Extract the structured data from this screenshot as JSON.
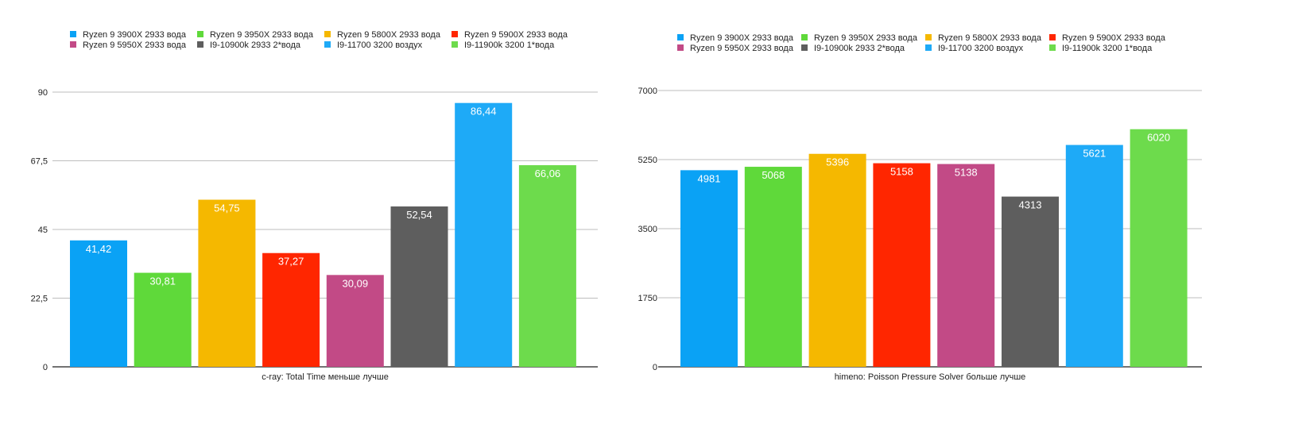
{
  "chart_data": [
    {
      "type": "bar",
      "xlabel": "c-ray: Total Time меньше лучше",
      "ylim": [
        0,
        90
      ],
      "yticks": [
        "0",
        "22,5",
        "45",
        "67,5",
        "90"
      ],
      "ytick_values": [
        0,
        22.5,
        45,
        67.5,
        90
      ],
      "grid": true,
      "legend_position": "top",
      "series": [
        {
          "name": "Ryzen 9 3900X 2933 вода",
          "value": 41.42,
          "label": "41,42",
          "color": "#0aa2f5"
        },
        {
          "name": "Ryzen 9 3950X 2933 вода",
          "value": 30.81,
          "label": "30,81",
          "color": "#5fd93a"
        },
        {
          "name": "Ryzen 9 5800X 2933 вода",
          "value": 54.75,
          "label": "54,75",
          "color": "#f5b800"
        },
        {
          "name": "Ryzen 9 5900X 2933 вода",
          "value": 37.27,
          "label": "37,27",
          "color": "#ff2600"
        },
        {
          "name": "Ryzen 9 5950X 2933 вода",
          "value": 30.09,
          "label": "30,09",
          "color": "#c24a86"
        },
        {
          "name": "I9-10900k 2933 2*вода",
          "value": 52.54,
          "label": "52,54",
          "color": "#5e5e5e"
        },
        {
          "name": "I9-11700 3200 воздух",
          "value": 86.44,
          "label": "86,44",
          "color": "#1eaaf7"
        },
        {
          "name": "I9-11900k 3200 1*вода",
          "value": 66.06,
          "label": "66,06",
          "color": "#6ddb4c"
        }
      ]
    },
    {
      "type": "bar",
      "xlabel": "himeno: Poisson Pressure Solver больше лучше",
      "ylim": [
        0,
        7000
      ],
      "yticks": [
        "0",
        "1750",
        "3500",
        "5250",
        "7000"
      ],
      "ytick_values": [
        0,
        1750,
        3500,
        5250,
        7000
      ],
      "grid": true,
      "legend_position": "top",
      "series": [
        {
          "name": "Ryzen 9 3900X 2933 вода",
          "value": 4981,
          "label": "4981",
          "color": "#0aa2f5"
        },
        {
          "name": "Ryzen 9 3950X 2933 вода",
          "value": 5068,
          "label": "5068",
          "color": "#5fd93a"
        },
        {
          "name": "Ryzen 9 5800X 2933 вода",
          "value": 5396,
          "label": "5396",
          "color": "#f5b800"
        },
        {
          "name": "Ryzen 9 5900X 2933 вода",
          "value": 5158,
          "label": "5158",
          "color": "#ff2600"
        },
        {
          "name": "Ryzen 9 5950X 2933 вода",
          "value": 5138,
          "label": "5138",
          "color": "#c24a86"
        },
        {
          "name": "I9-10900k 2933 2*вода",
          "value": 4313,
          "label": "4313",
          "color": "#5e5e5e"
        },
        {
          "name": "I9-11700 3200 воздух",
          "value": 5621,
          "label": "5621",
          "color": "#1eaaf7"
        },
        {
          "name": "I9-11900k 3200 1*вода",
          "value": 6020,
          "label": "6020",
          "color": "#6ddb4c"
        }
      ]
    }
  ]
}
